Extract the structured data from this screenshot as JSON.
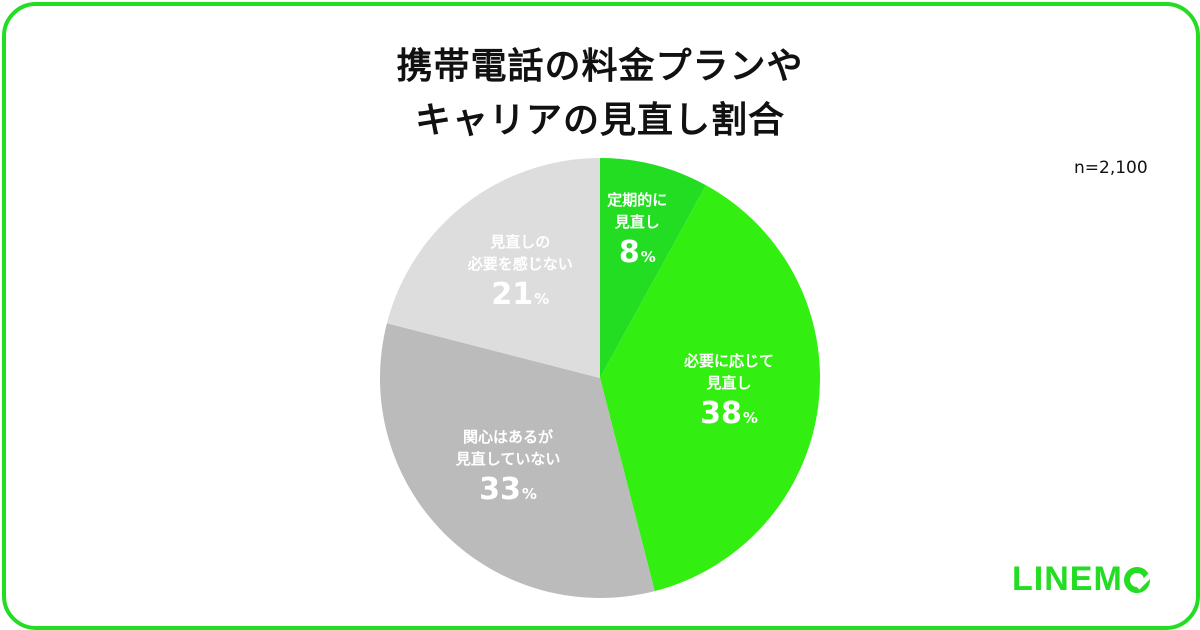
{
  "title_lines": [
    "携帯電話の料金プランや",
    "キャリアの見直し割合"
  ],
  "sample_size": "n=2,100",
  "brand": {
    "text": "LINEM",
    "logo_suffix": "O"
  },
  "chart_data": {
    "type": "pie",
    "start_angle_deg": 0,
    "direction": "clockwise",
    "slices": [
      {
        "label_lines": [
          "定期的に",
          "見直し"
        ],
        "value": 8,
        "pct_text": "8",
        "pct_unit": "%",
        "color": "#22dd22"
      },
      {
        "label_lines": [
          "必要に応じて",
          "見直し"
        ],
        "value": 38,
        "pct_text": "38",
        "pct_unit": "%",
        "color": "#33ee11"
      },
      {
        "label_lines": [
          "関心はあるが",
          "見直していない"
        ],
        "value": 33,
        "pct_text": "33",
        "pct_unit": "%",
        "color": "#bbbbbb"
      },
      {
        "label_lines": [
          "見直しの",
          "必要を感じない"
        ],
        "value": 21,
        "pct_text": "21",
        "pct_unit": "%",
        "color": "#dddddd"
      }
    ]
  }
}
